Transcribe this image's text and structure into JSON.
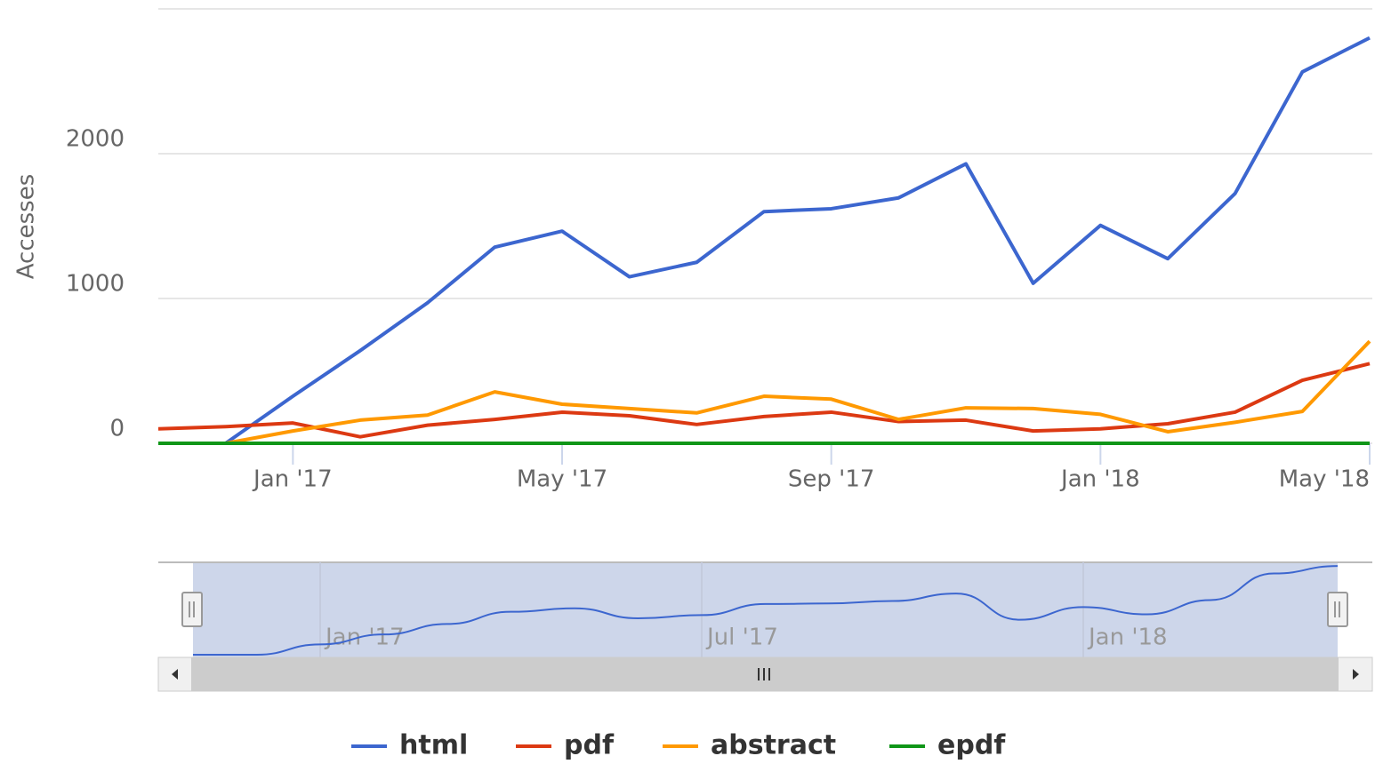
{
  "chart_data": {
    "type": "line",
    "y_axis_title": "Accesses",
    "categories": [
      null,
      null,
      "Jan '17",
      null,
      null,
      null,
      "May '17",
      null,
      null,
      null,
      "Sep '17",
      null,
      null,
      null,
      "Jan '18",
      null,
      null,
      null,
      "May '18"
    ],
    "ylim": [
      0,
      3000
    ],
    "yticks": [
      0,
      1000,
      2000
    ],
    "grid": true,
    "series": [
      {
        "name": "html",
        "color": "#3c66cf",
        "values": [
          0,
          0,
          325,
          640,
          970,
          1355,
          1465,
          1150,
          1250,
          1600,
          1620,
          1695,
          1930,
          1105,
          1505,
          1275,
          1725,
          2565,
          2800
        ]
      },
      {
        "name": "pdf",
        "color": "#dc3912",
        "values": [
          100,
          115,
          140,
          45,
          125,
          165,
          215,
          190,
          130,
          185,
          215,
          150,
          160,
          85,
          100,
          135,
          215,
          435,
          550
        ]
      },
      {
        "name": "abstract",
        "color": "#ff9900",
        "values": [
          0,
          0,
          85,
          160,
          195,
          355,
          270,
          240,
          210,
          325,
          305,
          165,
          245,
          240,
          200,
          80,
          145,
          220,
          705
        ]
      },
      {
        "name": "epdf",
        "color": "#109618",
        "values": [
          0,
          0,
          0,
          0,
          0,
          0,
          0,
          0,
          0,
          0,
          0,
          0,
          0,
          0,
          0,
          0,
          0,
          0,
          0
        ]
      }
    ],
    "navigator_xticks": [
      {
        "value": 2,
        "label": "Jan '17"
      },
      {
        "value": 8,
        "label": "Jul '17"
      },
      {
        "value": 14,
        "label": "Jan '18"
      }
    ]
  }
}
